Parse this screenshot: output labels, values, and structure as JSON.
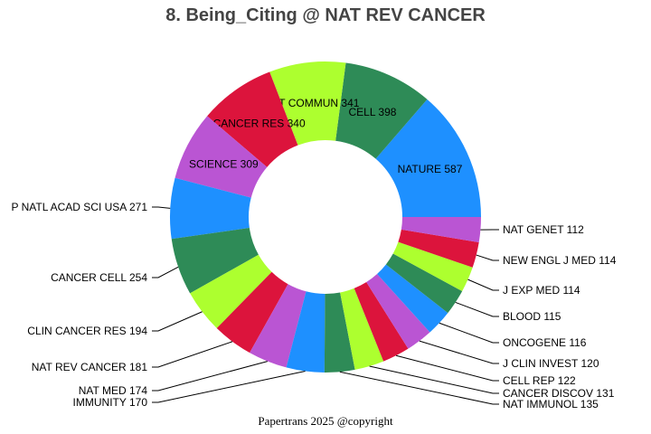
{
  "chart_data": {
    "type": "pie",
    "donut": true,
    "title": "8. Being_Citing @ NAT REV CANCER",
    "direction": "counterclockwise from east",
    "colors": [
      "#1e90ff",
      "#2e8b57",
      "#adff2f",
      "#dc143c",
      "#ba55d3"
    ],
    "categories": [
      "NATURE",
      "CELL",
      "NAT COMMUN",
      "CANCER RES",
      "SCIENCE",
      "P NATL ACAD SCI USA",
      "CANCER CELL",
      "CLIN CANCER RES",
      "NAT REV CANCER",
      "NAT MED",
      "IMMUNITY",
      "NAT IMMUNOL",
      "CANCER DISCOV",
      "CELL REP",
      "J CLIN INVEST",
      "ONCOGENE",
      "BLOOD",
      "J EXP MED",
      "NEW ENGL J MED",
      "NAT GENET"
    ],
    "values": [
      587,
      398,
      341,
      340,
      309,
      271,
      254,
      194,
      181,
      174,
      170,
      135,
      131,
      122,
      120,
      116,
      115,
      114,
      114,
      112
    ],
    "labels": [
      "NATURE 587",
      "CELL 398",
      "NAT COMMUN 341",
      "CANCER RES 340",
      "SCIENCE 309",
      "P NATL ACAD SCI USA 271",
      "CANCER CELL 254",
      "CLIN CANCER RES 194",
      "NAT REV CANCER 181",
      "NAT MED 174",
      "IMMUNITY 170",
      "NAT IMMUNOL 135",
      "CANCER DISCOV 131",
      "CELL REP 122",
      "J CLIN INVEST 120",
      "ONCOGENE 116",
      "BLOOD 115",
      "J EXP MED 114",
      "NEW ENGL J MED 114",
      "NAT GENET 112"
    ]
  },
  "footer": "Papertrans 2025 @copyright"
}
